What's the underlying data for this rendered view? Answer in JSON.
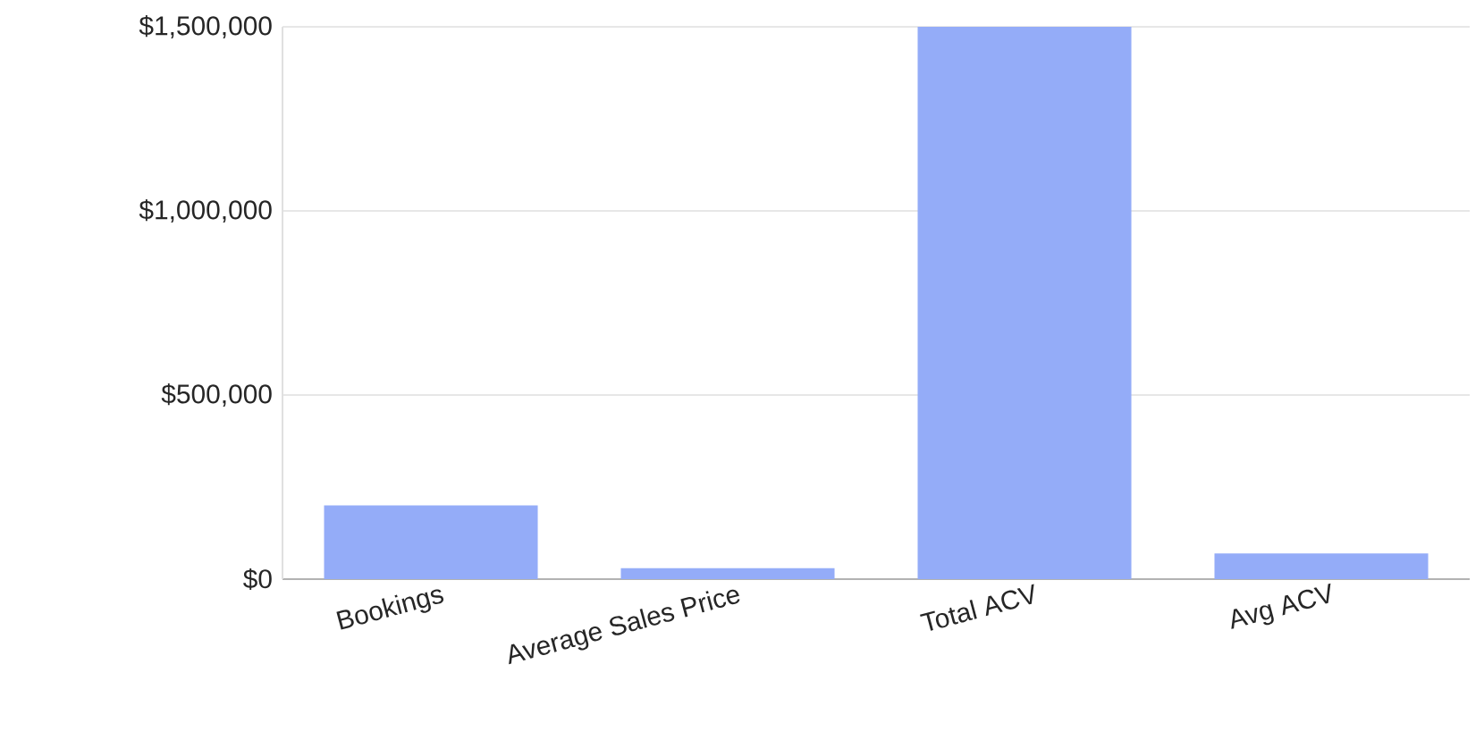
{
  "chart_data": {
    "type": "bar",
    "categories": [
      "Bookings",
      "Average Sales Price",
      "Total ACV",
      "Avg ACV"
    ],
    "values": [
      200000,
      30000,
      1500000,
      70000
    ],
    "color": "#94acf8",
    "ylim": [
      0,
      1500000
    ],
    "yticks": [
      {
        "value": 0,
        "label": "$0"
      },
      {
        "value": 500000,
        "label": "$500,000"
      },
      {
        "value": 1000000,
        "label": "$1,000,000"
      },
      {
        "value": 1500000,
        "label": "$1,500,000"
      }
    ],
    "grid": "y"
  }
}
